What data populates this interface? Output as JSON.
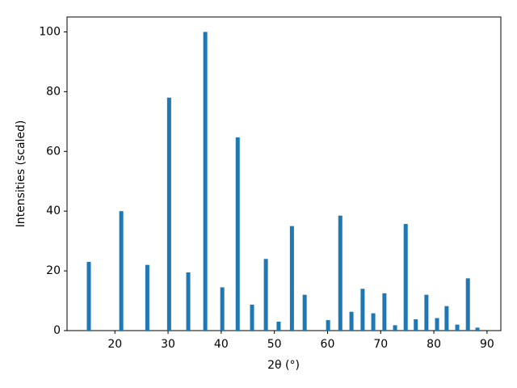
{
  "chart_data": {
    "type": "bar",
    "xlabel": "2θ (°)",
    "ylabel": "Intensities (scaled)",
    "x": [
      15.1,
      21.2,
      26.1,
      30.2,
      33.8,
      37.0,
      40.2,
      43.1,
      45.8,
      48.4,
      50.8,
      53.3,
      55.7,
      60.1,
      62.4,
      64.5,
      66.6,
      68.6,
      70.7,
      72.7,
      74.7,
      76.6,
      78.6,
      80.6,
      82.4,
      84.4,
      86.4,
      88.2
    ],
    "values": [
      23,
      40,
      22,
      78,
      19.5,
      100,
      14.5,
      64.7,
      8.7,
      24,
      3,
      35,
      12,
      3.5,
      38.5,
      6.3,
      14,
      5.8,
      12.5,
      1.8,
      35.7,
      3.8,
      12,
      4.2,
      8.2,
      2,
      17.5,
      1
    ],
    "color": "#1f77b4",
    "xlim": [
      11.0,
      92.6
    ],
    "xticks": [
      20,
      30,
      40,
      50,
      60,
      70,
      80,
      90
    ],
    "ylim": [
      0,
      105
    ],
    "yticks": [
      0,
      20,
      40,
      60,
      80,
      100
    ],
    "grid": false
  }
}
